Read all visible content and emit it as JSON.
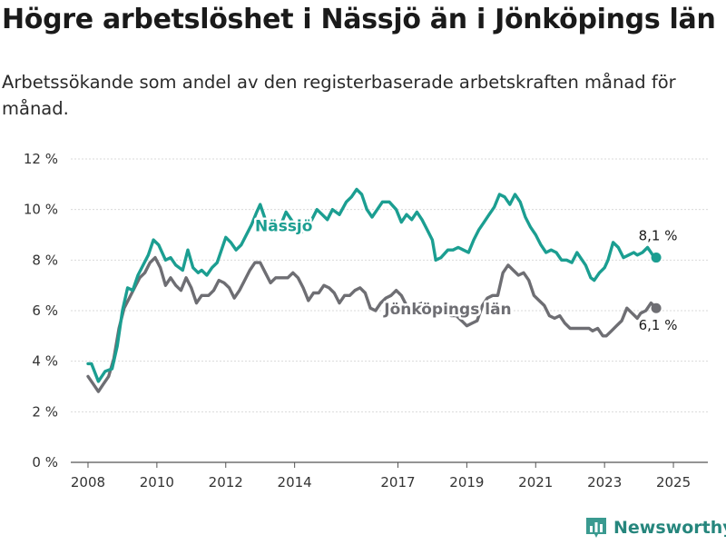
{
  "header": {
    "title": "Högre arbetslöshet i Nässjö än i Jönköpings län",
    "subtitle": "Arbetssökande som andel av den registerbaserade arbetskraften månad för månad."
  },
  "brand": {
    "name": "Newsworthy",
    "icon": "bar-chart-logo-icon",
    "color": "#26867d"
  },
  "colors": {
    "nassjo": "#1b9e91",
    "lan": "#6e6e73",
    "grid": "#d9d9d9",
    "axis": "#555555"
  },
  "chart_data": {
    "type": "line",
    "title": "",
    "xlabel": "",
    "ylabel": "",
    "ylim": [
      0,
      12
    ],
    "xlim": [
      2007.5,
      2026.0
    ],
    "grid": true,
    "legend": "none",
    "y_ticks": [
      {
        "value": 0,
        "label": "0 %"
      },
      {
        "value": 2,
        "label": "2 %"
      },
      {
        "value": 4,
        "label": "4 %"
      },
      {
        "value": 6,
        "label": "6 %"
      },
      {
        "value": 8,
        "label": "8 %"
      },
      {
        "value": 10,
        "label": "10 %"
      },
      {
        "value": 12,
        "label": "12 %"
      }
    ],
    "x_ticks": [
      {
        "value": 2008,
        "label": "2008"
      },
      {
        "value": 2010,
        "label": "2010"
      },
      {
        "value": 2012,
        "label": "2012"
      },
      {
        "value": 2014,
        "label": "2014"
      },
      {
        "value": 2017,
        "label": "2017"
      },
      {
        "value": 2019,
        "label": "2019"
      },
      {
        "value": 2021,
        "label": "2021"
      },
      {
        "value": 2023,
        "label": "2023"
      },
      {
        "value": 2025,
        "label": "2025"
      }
    ],
    "series": [
      {
        "name": "Nässjö",
        "color": "#1b9e91",
        "end_label": "8,1 %",
        "points": [
          [
            2008.0,
            3.9
          ],
          [
            2008.1,
            3.9
          ],
          [
            2008.3,
            3.2
          ],
          [
            2008.5,
            3.6
          ],
          [
            2008.7,
            3.7
          ],
          [
            2008.85,
            4.6
          ],
          [
            2009.0,
            6.0
          ],
          [
            2009.15,
            6.9
          ],
          [
            2009.3,
            6.8
          ],
          [
            2009.45,
            7.4
          ],
          [
            2009.6,
            7.8
          ],
          [
            2009.75,
            8.2
          ],
          [
            2009.9,
            8.8
          ],
          [
            2010.05,
            8.6
          ],
          [
            2010.25,
            8.0
          ],
          [
            2010.4,
            8.1
          ],
          [
            2010.55,
            7.8
          ],
          [
            2010.75,
            7.6
          ],
          [
            2010.9,
            8.4
          ],
          [
            2011.05,
            7.7
          ],
          [
            2011.2,
            7.5
          ],
          [
            2011.3,
            7.6
          ],
          [
            2011.45,
            7.4
          ],
          [
            2011.6,
            7.7
          ],
          [
            2011.75,
            7.9
          ],
          [
            2012.0,
            8.9
          ],
          [
            2012.15,
            8.7
          ],
          [
            2012.3,
            8.4
          ],
          [
            2012.45,
            8.6
          ],
          [
            2012.6,
            9.0
          ],
          [
            2012.75,
            9.4
          ],
          [
            2012.9,
            9.9
          ],
          [
            2013.0,
            10.2
          ],
          [
            2013.15,
            9.6
          ],
          [
            2013.3,
            9.3
          ],
          [
            2013.45,
            9.2
          ],
          [
            2013.6,
            9.4
          ],
          [
            2013.75,
            9.9
          ],
          [
            2013.9,
            9.6
          ],
          [
            2014.05,
            9.3
          ],
          [
            2014.2,
            9.1
          ],
          [
            2014.35,
            9.3
          ],
          [
            2014.5,
            9.6
          ],
          [
            2014.65,
            10.0
          ],
          [
            2014.8,
            9.8
          ],
          [
            2014.95,
            9.6
          ],
          [
            2015.1,
            10.0
          ],
          [
            2015.3,
            9.8
          ],
          [
            2015.5,
            10.3
          ],
          [
            2015.65,
            10.5
          ],
          [
            2015.8,
            10.8
          ],
          [
            2015.95,
            10.6
          ],
          [
            2016.1,
            10.0
          ],
          [
            2016.25,
            9.7
          ],
          [
            2016.4,
            10.0
          ],
          [
            2016.55,
            10.3
          ],
          [
            2016.75,
            10.3
          ],
          [
            2016.95,
            10.0
          ],
          [
            2017.1,
            9.5
          ],
          [
            2017.25,
            9.8
          ],
          [
            2017.4,
            9.6
          ],
          [
            2017.55,
            9.9
          ],
          [
            2017.7,
            9.6
          ],
          [
            2017.85,
            9.2
          ],
          [
            2018.0,
            8.8
          ],
          [
            2018.1,
            8.0
          ],
          [
            2018.25,
            8.1
          ],
          [
            2018.45,
            8.4
          ],
          [
            2018.6,
            8.4
          ],
          [
            2018.75,
            8.5
          ],
          [
            2018.9,
            8.4
          ],
          [
            2019.05,
            8.3
          ],
          [
            2019.2,
            8.8
          ],
          [
            2019.35,
            9.2
          ],
          [
            2019.5,
            9.5
          ],
          [
            2019.65,
            9.8
          ],
          [
            2019.8,
            10.1
          ],
          [
            2019.95,
            10.6
          ],
          [
            2020.1,
            10.5
          ],
          [
            2020.25,
            10.2
          ],
          [
            2020.4,
            10.6
          ],
          [
            2020.55,
            10.3
          ],
          [
            2020.7,
            9.7
          ],
          [
            2020.85,
            9.3
          ],
          [
            2021.0,
            9.0
          ],
          [
            2021.15,
            8.6
          ],
          [
            2021.3,
            8.3
          ],
          [
            2021.45,
            8.4
          ],
          [
            2021.6,
            8.3
          ],
          [
            2021.75,
            8.0
          ],
          [
            2021.9,
            8.0
          ],
          [
            2022.05,
            7.9
          ],
          [
            2022.2,
            8.3
          ],
          [
            2022.3,
            8.1
          ],
          [
            2022.45,
            7.8
          ],
          [
            2022.6,
            7.3
          ],
          [
            2022.7,
            7.2
          ],
          [
            2022.85,
            7.5
          ],
          [
            2023.0,
            7.7
          ],
          [
            2023.1,
            8.0
          ],
          [
            2023.25,
            8.7
          ],
          [
            2023.4,
            8.5
          ],
          [
            2023.55,
            8.1
          ],
          [
            2023.7,
            8.2
          ],
          [
            2023.85,
            8.3
          ],
          [
            2023.95,
            8.2
          ],
          [
            2024.1,
            8.3
          ],
          [
            2024.25,
            8.5
          ],
          [
            2024.4,
            8.2
          ],
          [
            2024.5,
            8.1
          ]
        ]
      },
      {
        "name": "Jönköpings län",
        "color": "#6e6e73",
        "end_label": "6,1 %",
        "points": [
          [
            2008.0,
            3.4
          ],
          [
            2008.15,
            3.1
          ],
          [
            2008.3,
            2.8
          ],
          [
            2008.45,
            3.1
          ],
          [
            2008.6,
            3.4
          ],
          [
            2008.75,
            4.1
          ],
          [
            2008.9,
            5.3
          ],
          [
            2009.05,
            6.1
          ],
          [
            2009.2,
            6.5
          ],
          [
            2009.35,
            6.9
          ],
          [
            2009.5,
            7.3
          ],
          [
            2009.65,
            7.5
          ],
          [
            2009.8,
            7.9
          ],
          [
            2009.95,
            8.1
          ],
          [
            2010.1,
            7.7
          ],
          [
            2010.25,
            7.0
          ],
          [
            2010.4,
            7.3
          ],
          [
            2010.55,
            7.0
          ],
          [
            2010.7,
            6.8
          ],
          [
            2010.85,
            7.3
          ],
          [
            2011.0,
            6.9
          ],
          [
            2011.15,
            6.3
          ],
          [
            2011.3,
            6.6
          ],
          [
            2011.5,
            6.6
          ],
          [
            2011.65,
            6.8
          ],
          [
            2011.8,
            7.2
          ],
          [
            2011.95,
            7.1
          ],
          [
            2012.1,
            6.9
          ],
          [
            2012.25,
            6.5
          ],
          [
            2012.4,
            6.8
          ],
          [
            2012.55,
            7.2
          ],
          [
            2012.7,
            7.6
          ],
          [
            2012.85,
            7.9
          ],
          [
            2013.0,
            7.9
          ],
          [
            2013.15,
            7.5
          ],
          [
            2013.3,
            7.1
          ],
          [
            2013.45,
            7.3
          ],
          [
            2013.6,
            7.3
          ],
          [
            2013.8,
            7.3
          ],
          [
            2013.95,
            7.5
          ],
          [
            2014.1,
            7.3
          ],
          [
            2014.25,
            6.9
          ],
          [
            2014.4,
            6.4
          ],
          [
            2014.55,
            6.7
          ],
          [
            2014.7,
            6.7
          ],
          [
            2014.85,
            7.0
          ],
          [
            2015.0,
            6.9
          ],
          [
            2015.15,
            6.7
          ],
          [
            2015.3,
            6.3
          ],
          [
            2015.45,
            6.6
          ],
          [
            2015.6,
            6.6
          ],
          [
            2015.75,
            6.8
          ],
          [
            2015.9,
            6.9
          ],
          [
            2016.05,
            6.7
          ],
          [
            2016.2,
            6.1
          ],
          [
            2016.35,
            6.0
          ],
          [
            2016.5,
            6.3
          ],
          [
            2016.65,
            6.5
          ],
          [
            2016.8,
            6.6
          ],
          [
            2016.95,
            6.8
          ],
          [
            2017.1,
            6.6
          ],
          [
            2017.25,
            6.2
          ],
          [
            2017.4,
            6.1
          ],
          [
            2017.55,
            6.2
          ],
          [
            2017.7,
            6.3
          ],
          [
            2017.85,
            6.2
          ],
          [
            2018.0,
            6.2
          ],
          [
            2018.1,
            6.1
          ],
          [
            2018.25,
            6.0
          ],
          [
            2018.4,
            5.9
          ],
          [
            2018.55,
            5.8
          ],
          [
            2018.7,
            5.8
          ],
          [
            2018.85,
            5.6
          ],
          [
            2019.0,
            5.4
          ],
          [
            2019.15,
            5.5
          ],
          [
            2019.3,
            5.6
          ],
          [
            2019.45,
            6.2
          ],
          [
            2019.6,
            6.5
          ],
          [
            2019.75,
            6.6
          ],
          [
            2019.9,
            6.6
          ],
          [
            2020.05,
            7.5
          ],
          [
            2020.2,
            7.8
          ],
          [
            2020.35,
            7.6
          ],
          [
            2020.5,
            7.4
          ],
          [
            2020.65,
            7.5
          ],
          [
            2020.8,
            7.2
          ],
          [
            2020.95,
            6.6
          ],
          [
            2021.1,
            6.4
          ],
          [
            2021.25,
            6.2
          ],
          [
            2021.4,
            5.8
          ],
          [
            2021.55,
            5.7
          ],
          [
            2021.7,
            5.8
          ],
          [
            2021.85,
            5.5
          ],
          [
            2022.0,
            5.3
          ],
          [
            2022.15,
            5.3
          ],
          [
            2022.35,
            5.3
          ],
          [
            2022.55,
            5.3
          ],
          [
            2022.65,
            5.2
          ],
          [
            2022.8,
            5.3
          ],
          [
            2022.95,
            5.0
          ],
          [
            2023.05,
            5.0
          ],
          [
            2023.2,
            5.2
          ],
          [
            2023.35,
            5.4
          ],
          [
            2023.5,
            5.6
          ],
          [
            2023.65,
            6.1
          ],
          [
            2023.8,
            5.9
          ],
          [
            2023.95,
            5.7
          ],
          [
            2024.05,
            5.9
          ],
          [
            2024.2,
            6.0
          ],
          [
            2024.35,
            6.3
          ],
          [
            2024.5,
            6.1
          ]
        ]
      }
    ]
  }
}
